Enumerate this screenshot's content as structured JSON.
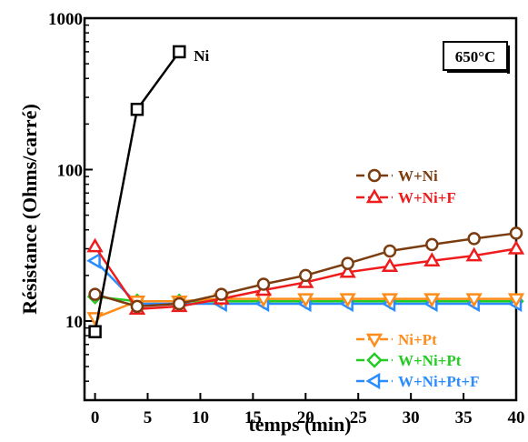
{
  "chart_data": {
    "type": "line",
    "title": "",
    "xlabel": "temps (min)",
    "ylabel": "Résistance (Ohms/carré)",
    "xlim": [
      -1,
      40
    ],
    "ylim": [
      3,
      1000
    ],
    "yscale": "log",
    "xticks": [
      0,
      5,
      10,
      15,
      20,
      25,
      30,
      35,
      40
    ],
    "yticks": [
      10,
      100,
      1000
    ],
    "grid": false,
    "annotation": "650°C",
    "series": [
      {
        "name": "Ni",
        "label_position": "inline",
        "marker": "square",
        "color": "#000000",
        "x": [
          0,
          4,
          8
        ],
        "y": [
          8.5,
          250,
          600
        ]
      },
      {
        "name": "W+Ni",
        "marker": "circle",
        "color": "#7b3d10",
        "legend_group": "top",
        "x": [
          0,
          4,
          8,
          12,
          16,
          20,
          24,
          28,
          32,
          36,
          40
        ],
        "y": [
          15,
          12.5,
          13,
          15,
          17.5,
          20,
          24,
          29,
          32,
          35,
          38
        ]
      },
      {
        "name": "W+Ni+F",
        "marker": "triangle-up",
        "color": "#ee1c1c",
        "legend_group": "top",
        "x": [
          0,
          4,
          8,
          12,
          16,
          20,
          24,
          28,
          32,
          36,
          40
        ],
        "y": [
          31,
          12,
          12.5,
          14,
          16,
          18,
          21,
          23,
          25,
          27,
          30
        ]
      },
      {
        "name": "Ni+Pt",
        "marker": "triangle-down",
        "color": "#ff8c1a",
        "legend_group": "bottom",
        "x": [
          0,
          4,
          8,
          12,
          16,
          20,
          24,
          28,
          32,
          36,
          40
        ],
        "y": [
          10.5,
          13.5,
          13.5,
          14,
          14,
          14,
          14,
          14,
          14,
          14,
          14
        ]
      },
      {
        "name": "W+Ni+Pt",
        "marker": "diamond",
        "color": "#22cc22",
        "legend_group": "bottom",
        "x": [
          0,
          4,
          8,
          12,
          16,
          20,
          24,
          28,
          32,
          36,
          40
        ],
        "y": [
          14.5,
          13.5,
          13.5,
          13.5,
          13.5,
          13.5,
          13.5,
          13.5,
          13.5,
          13.5,
          13.5
        ]
      },
      {
        "name": "W+Ni+Pt+F",
        "marker": "triangle-left",
        "color": "#2a8cff",
        "legend_group": "bottom",
        "x": [
          0,
          4,
          8,
          12,
          16,
          20,
          24,
          28,
          32,
          36,
          40
        ],
        "y": [
          25,
          13,
          13,
          13,
          13,
          13,
          13,
          13,
          13,
          13,
          13
        ]
      }
    ]
  }
}
